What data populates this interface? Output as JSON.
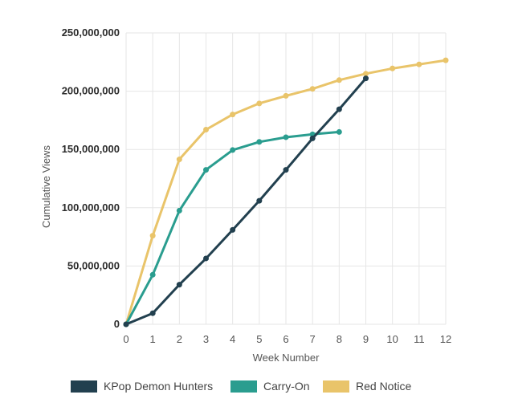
{
  "chart_data": {
    "type": "line",
    "xlabel": "Week Number",
    "ylabel": "Cumulative Views",
    "x_ticks": [
      0,
      1,
      2,
      3,
      4,
      5,
      6,
      7,
      8,
      9,
      10,
      11,
      12
    ],
    "y_ticks": [
      0,
      50000000,
      100000000,
      150000000,
      200000000,
      250000000
    ],
    "y_tick_labels": [
      "0",
      "50,000,000",
      "100,000,000",
      "150,000,000",
      "200,000,000",
      "250,000,000"
    ],
    "xlim": [
      0,
      12
    ],
    "ylim": [
      0,
      250000000
    ],
    "grid": "vertical and horizontal",
    "legend_position": "bottom",
    "series": [
      {
        "name": "KPop Demon Hunters",
        "color": "#22404f",
        "x": [
          0,
          1,
          2,
          3,
          4,
          5,
          6,
          7,
          8,
          9
        ],
        "values": [
          0,
          9500000,
          34000000,
          56500000,
          81000000,
          106000000,
          132500000,
          159500000,
          184500000,
          211000000
        ]
      },
      {
        "name": "Carry-On",
        "color": "#2a9d8f",
        "x": [
          0,
          1,
          2,
          3,
          4,
          5,
          6,
          7,
          8
        ],
        "values": [
          0,
          42500000,
          97500000,
          132500000,
          149500000,
          156500000,
          160500000,
          163000000,
          165000000
        ]
      },
      {
        "name": "Red Notice",
        "color": "#e9c46a",
        "x": [
          0,
          1,
          2,
          3,
          4,
          5,
          6,
          7,
          8,
          9,
          10,
          11,
          12
        ],
        "values": [
          0,
          76000000,
          141500000,
          167000000,
          180000000,
          189500000,
          196000000,
          202000000,
          209500000,
          215000000,
          219500000,
          223000000,
          226500000
        ]
      }
    ]
  }
}
